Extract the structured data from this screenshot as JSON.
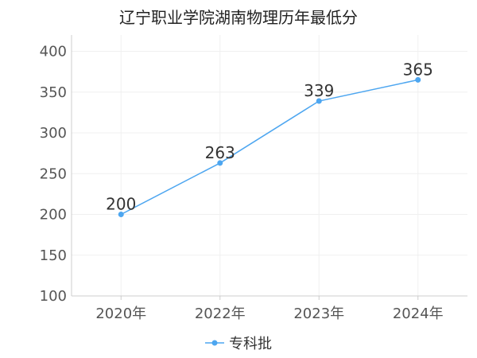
{
  "chart_data": {
    "type": "line",
    "title": "辽宁职业学院湖南物理历年最低分",
    "categories": [
      "2020年",
      "2022年",
      "2023年",
      "2024年"
    ],
    "series": [
      {
        "name": "专科批",
        "values": [
          200,
          263,
          339,
          365
        ],
        "color": "#4da6f0"
      }
    ],
    "ylim": [
      100,
      420
    ],
    "yticks": [
      100,
      150,
      200,
      250,
      300,
      350,
      400
    ],
    "grid": true,
    "legend_position": "bottom-center"
  }
}
